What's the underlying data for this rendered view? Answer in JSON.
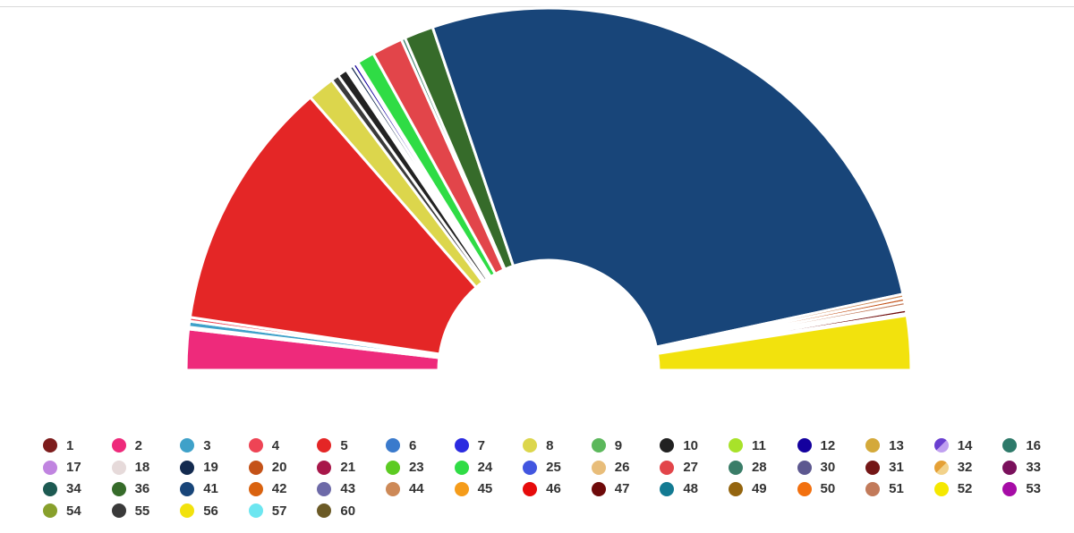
{
  "chart_data": {
    "type": "pie",
    "variant": "parliament-half-donut",
    "title": "",
    "legend_position": "bottom",
    "slices": [
      {
        "label": "2",
        "value": 21,
        "color": "#ee2a7b"
      },
      {
        "label": "18",
        "value": 1,
        "color": "#e6dada"
      },
      {
        "label": "3",
        "value": 3,
        "color": "#3fa1c9"
      },
      {
        "label": "4",
        "value": 2,
        "color": "#ee4455"
      },
      {
        "label": "5",
        "value": 130,
        "color": "#e42626"
      },
      {
        "label": "8",
        "value": 14,
        "color": "#dcd64c"
      },
      {
        "label": "55",
        "value": 4,
        "color": "#3a3a3a"
      },
      {
        "label": "10",
        "value": 5,
        "color": "#222222"
      },
      {
        "label": "26",
        "value": 1,
        "color": "#e8bd7a"
      },
      {
        "label": "17",
        "value": 1,
        "color": "#c084e0"
      },
      {
        "label": "19",
        "value": 2,
        "color": "#132a4f"
      },
      {
        "label": "12",
        "value": 2,
        "color": "#14009e"
      },
      {
        "label": "9",
        "value": 1,
        "color": "#5cb85c"
      },
      {
        "label": "24",
        "value": 9,
        "color": "#2fdc45"
      },
      {
        "label": "27",
        "value": 16,
        "color": "#e2454a"
      },
      {
        "label": "28",
        "value": 2,
        "color": "#3a7d68"
      },
      {
        "label": "36",
        "value": 15,
        "color": "#366b2a"
      },
      {
        "label": "41",
        "value": 310,
        "color": "#184579"
      },
      {
        "label": "44",
        "value": 2,
        "color": "#cd8957"
      },
      {
        "label": "20",
        "value": 2,
        "color": "#c45218"
      },
      {
        "label": "51",
        "value": 2,
        "color": "#c27a5a"
      },
      {
        "label": "32",
        "value": 1,
        "color": "#e5a035"
      },
      {
        "label": "33",
        "value": 1,
        "color": "#7a105c"
      },
      {
        "label": "47",
        "value": 2,
        "color": "#6e0a0a"
      },
      {
        "label": "16",
        "value": 1,
        "color": "#2e7a6a"
      },
      {
        "label": "56",
        "value": 28,
        "color": "#f2e20d"
      }
    ],
    "legend": [
      {
        "label": "1",
        "color": "#7d1c1c"
      },
      {
        "label": "2",
        "color": "#ee2a7b"
      },
      {
        "label": "3",
        "color": "#3fa1c9"
      },
      {
        "label": "4",
        "color": "#ee4455"
      },
      {
        "label": "5",
        "color": "#e42626"
      },
      {
        "label": "6",
        "color": "#3a7acc"
      },
      {
        "label": "7",
        "color": "#2b2be0"
      },
      {
        "label": "8",
        "color": "#dcd64c"
      },
      {
        "label": "9",
        "color": "#5cb85c"
      },
      {
        "label": "10",
        "color": "#222222"
      },
      {
        "label": "11",
        "color": "#a8e22a"
      },
      {
        "label": "12",
        "color": "#14009e"
      },
      {
        "label": "13",
        "color": "#d4a93a"
      },
      {
        "label": "14",
        "color": "#6a3fd0",
        "color2": "#c0a0f0"
      },
      {
        "label": "16",
        "color": "#2e7a6a"
      },
      {
        "label": "17",
        "color": "#c084e0"
      },
      {
        "label": "18",
        "color": "#e6dada"
      },
      {
        "label": "19",
        "color": "#132a4f"
      },
      {
        "label": "20",
        "color": "#c45218"
      },
      {
        "label": "21",
        "color": "#a8174a"
      },
      {
        "label": "23",
        "color": "#5ccb22"
      },
      {
        "label": "24",
        "color": "#2fdc45"
      },
      {
        "label": "25",
        "color": "#4256e0"
      },
      {
        "label": "26",
        "color": "#e8bd7a"
      },
      {
        "label": "27",
        "color": "#e2454a"
      },
      {
        "label": "28",
        "color": "#3a7d68"
      },
      {
        "label": "30",
        "color": "#5d5890"
      },
      {
        "label": "31",
        "color": "#741616"
      },
      {
        "label": "32",
        "color": "#e5a035",
        "color2": "#f2d28a"
      },
      {
        "label": "33",
        "color": "#7a105c"
      },
      {
        "label": "34",
        "color": "#1d5a52"
      },
      {
        "label": "36",
        "color": "#366b2a"
      },
      {
        "label": "41",
        "color": "#184579"
      },
      {
        "label": "42",
        "color": "#d9620f"
      },
      {
        "label": "43",
        "color": "#6d6aa8"
      },
      {
        "label": "44",
        "color": "#cd8957"
      },
      {
        "label": "45",
        "color": "#f59c1a"
      },
      {
        "label": "46",
        "color": "#e60b0b"
      },
      {
        "label": "47",
        "color": "#6e0a0a"
      },
      {
        "label": "48",
        "color": "#137a92"
      },
      {
        "label": "49",
        "color": "#94650f"
      },
      {
        "label": "50",
        "color": "#f2700f"
      },
      {
        "label": "51",
        "color": "#c27a5a"
      },
      {
        "label": "52",
        "color": "#f5e800"
      },
      {
        "label": "53",
        "color": "#a60ca6"
      },
      {
        "label": "54",
        "color": "#88a02c"
      },
      {
        "label": "55",
        "color": "#3a3a3a"
      },
      {
        "label": "56",
        "color": "#f2e20d"
      },
      {
        "label": "57",
        "color": "#6de6f0"
      },
      {
        "label": "60",
        "color": "#6b5a26"
      }
    ]
  }
}
